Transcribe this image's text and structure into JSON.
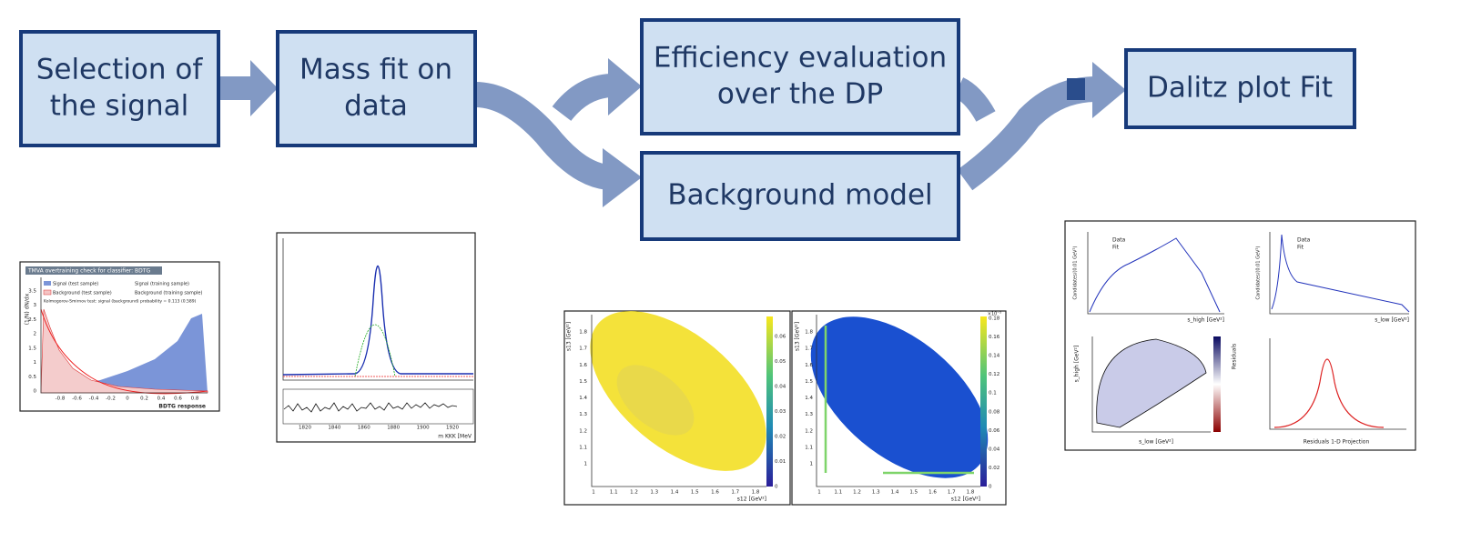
{
  "nodes": [
    {
      "lines": [
        "Selection of",
        "the signal"
      ]
    },
    {
      "lines": [
        "Mass fit on",
        "data"
      ]
    },
    {
      "lines": [
        "Efficiency evaluation",
        "over the DP"
      ]
    },
    {
      "lines": [
        "Background model"
      ]
    },
    {
      "lines": [
        "Dalitz plot Fit"
      ]
    }
  ],
  "thumbnails": {
    "bdtg": {
      "title": "TMVA overtraining check for classifier: BDTG",
      "legend": [
        "Signal (test sample)",
        "Signal (training sample)",
        "Background (test sample)",
        "Background (training sample)"
      ],
      "ks_test": "Kolmogorov-Smirnov test: signal (background) probability = 0.113 (0.589)",
      "y_label": "(1/N) dN/dx",
      "x_label": "BDTG response",
      "x_ticks": [
        "-0.8",
        "-0.6",
        "-0.4",
        "-0.2",
        "0",
        "0.2",
        "0.4",
        "0.6",
        "0.8"
      ],
      "y_ticks": [
        "0",
        "0.5",
        "1",
        "1.5",
        "2",
        "2.5",
        "3",
        "3.5"
      ]
    },
    "mass_fit": {
      "x_ticks": [
        "1820",
        "1840",
        "1860",
        "1880",
        "1900",
        "1920"
      ],
      "x_label": "m KKK [MeV"
    },
    "efficiency": {
      "x_label": "s12 [GeV²]",
      "y_label": "s13 [GeV²]",
      "x_ticks": [
        "1",
        "1.1",
        "1.2",
        "1.3",
        "1.4",
        "1.5",
        "1.6",
        "1.7",
        "1.8"
      ],
      "y_ticks": [
        "1",
        "1.1",
        "1.2",
        "1.3",
        "1.4",
        "1.5",
        "1.6",
        "1.7",
        "1.8"
      ],
      "colorbar_ticks": [
        "0",
        "0.01",
        "0.02",
        "0.03",
        "0.04",
        "0.05",
        "0.06"
      ]
    },
    "background": {
      "x_label": "s12 [GeV²]",
      "y_label": "s13 [GeV²]",
      "exponent": "×10⁻³",
      "x_ticks": [
        "1",
        "1.1",
        "1.2",
        "1.3",
        "1.4",
        "1.5",
        "1.6",
        "1.7",
        "1.8"
      ],
      "y_ticks": [
        "1",
        "1.1",
        "1.2",
        "1.3",
        "1.4",
        "1.5",
        "1.6",
        "1.7",
        "1.8"
      ],
      "colorbar_ticks": [
        "0",
        "0.02",
        "0.04",
        "0.06",
        "0.08",
        "0.1",
        "0.12",
        "0.14",
        "0.16",
        "0.18"
      ]
    },
    "dalitz": {
      "data": "Data",
      "fit": "Fit",
      "y_label": "Candidates/(0.01 GeV²)",
      "x_label_high": "s_high [GeV²]",
      "x_label_low": "s_low [GeV²]",
      "residuals": "Residuals",
      "projection": "Residuals 1-D Projection"
    }
  }
}
